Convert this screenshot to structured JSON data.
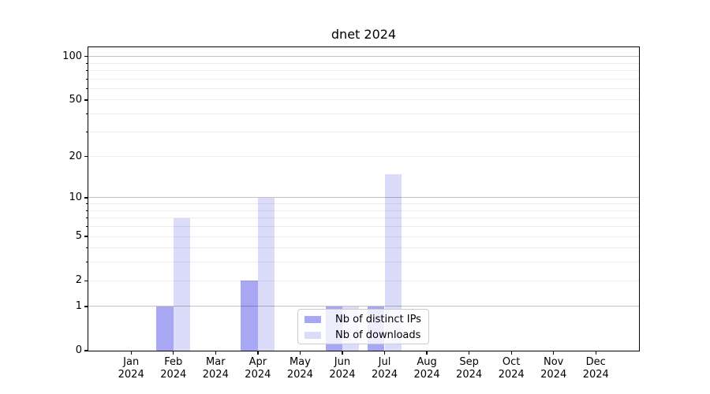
{
  "chart_data": {
    "type": "bar",
    "title": "dnet 2024",
    "categories": [
      "Jan 2024",
      "Feb 2024",
      "Mar 2024",
      "Apr 2024",
      "May 2024",
      "Jun 2024",
      "Jul 2024",
      "Aug 2024",
      "Sep 2024",
      "Oct 2024",
      "Nov 2024",
      "Dec 2024"
    ],
    "months": [
      {
        "month": "Jan",
        "year": "2024"
      },
      {
        "month": "Feb",
        "year": "2024"
      },
      {
        "month": "Mar",
        "year": "2024"
      },
      {
        "month": "Apr",
        "year": "2024"
      },
      {
        "month": "May",
        "year": "2024"
      },
      {
        "month": "Jun",
        "year": "2024"
      },
      {
        "month": "Jul",
        "year": "2024"
      },
      {
        "month": "Aug",
        "year": "2024"
      },
      {
        "month": "Sep",
        "year": "2024"
      },
      {
        "month": "Oct",
        "year": "2024"
      },
      {
        "month": "Nov",
        "year": "2024"
      },
      {
        "month": "Dec",
        "year": "2024"
      }
    ],
    "series": [
      {
        "name": "Nb of distinct IPs",
        "color": "#a7a7f4",
        "values": [
          0,
          1,
          0,
          2,
          0,
          1,
          1,
          0,
          0,
          0,
          0,
          0
        ]
      },
      {
        "name": "Nb of downloads",
        "color": "#dbdbfa",
        "values": [
          0,
          7,
          0,
          10,
          0,
          1,
          15,
          0,
          0,
          0,
          0,
          0
        ]
      }
    ],
    "xlabel": "",
    "ylabel": "",
    "yscale": "log1p",
    "ylim": [
      0,
      115
    ],
    "yticks_labeled": [
      0,
      1,
      2,
      5,
      10,
      20,
      50,
      100
    ],
    "ygrid_major": [
      1,
      10,
      100
    ],
    "ygrid_minor": [
      2,
      3,
      4,
      5,
      6,
      7,
      8,
      9,
      20,
      30,
      40,
      50,
      60,
      70,
      80,
      90
    ],
    "grid": true,
    "legend_position": "lower center"
  },
  "colors": {
    "bar_distinct_ips": "#a7a7f4",
    "bar_downloads": "#dbdbfa",
    "grid_major": "rgba(0,0,0,0.24)",
    "grid_minor": "rgba(0,0,0,0.08)",
    "axis": "#000000",
    "legend_border": "#cccccc",
    "background": "#ffffff"
  }
}
